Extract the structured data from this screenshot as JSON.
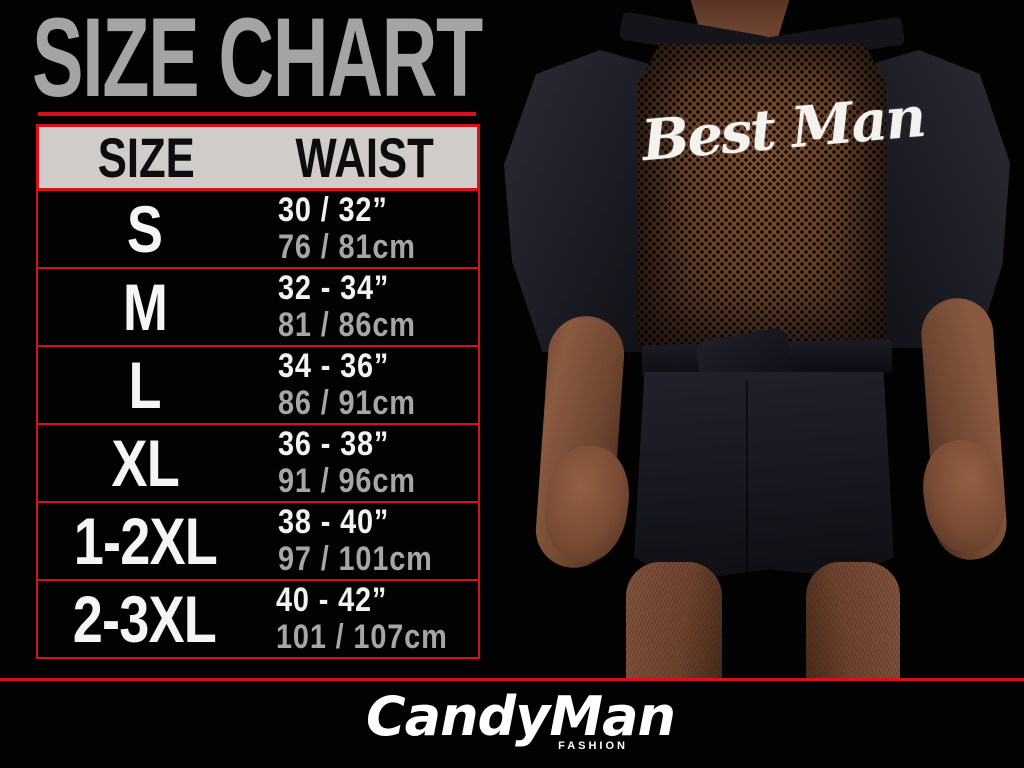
{
  "title": "SIZE CHART",
  "table": {
    "headers": [
      "SIZE",
      "WAIST"
    ],
    "rows": [
      {
        "size": "S",
        "inches": "30 / 32”",
        "cm": "76 / 81cm"
      },
      {
        "size": "M",
        "inches": "32 - 34”",
        "cm": "81 / 86cm"
      },
      {
        "size": "L",
        "inches": "34 - 36”",
        "cm": "86 / 91cm"
      },
      {
        "size": "XL",
        "inches": "36 - 38”",
        "cm": "91 / 96cm"
      },
      {
        "size": "1-2XL",
        "inches": "38 - 40”",
        "cm": "97 / 101cm"
      },
      {
        "size": "2-3XL",
        "inches": "40 - 42”",
        "cm": "101 / 107cm"
      }
    ]
  },
  "photo": {
    "garment_text": "Best Man"
  },
  "brand": {
    "name": "CandyMan",
    "tagline": "FASHION"
  },
  "colors": {
    "background": "#000000",
    "accent_red": "#d8101a",
    "title_gray": "#a4a4a4",
    "header_bg": "#cfccc9",
    "size_text": "#f5f5f5",
    "inches_text": "#f2f2f2",
    "cm_text": "#a6a6a6",
    "mesh_brown": "#6e452c"
  },
  "chart_data": {
    "type": "table",
    "title": "SIZE CHART",
    "columns": [
      "SIZE",
      "WAIST"
    ],
    "rows": [
      [
        "S",
        "30 / 32” (76 / 81cm)"
      ],
      [
        "M",
        "32 - 34” (81 / 86cm)"
      ],
      [
        "L",
        "34 - 36” (86 / 91cm)"
      ],
      [
        "XL",
        "36 - 38” (91 / 96cm)"
      ],
      [
        "1-2XL",
        "38 - 40” (97 / 101cm)"
      ],
      [
        "2-3XL",
        "40 - 42” (101 / 107cm)"
      ]
    ]
  }
}
